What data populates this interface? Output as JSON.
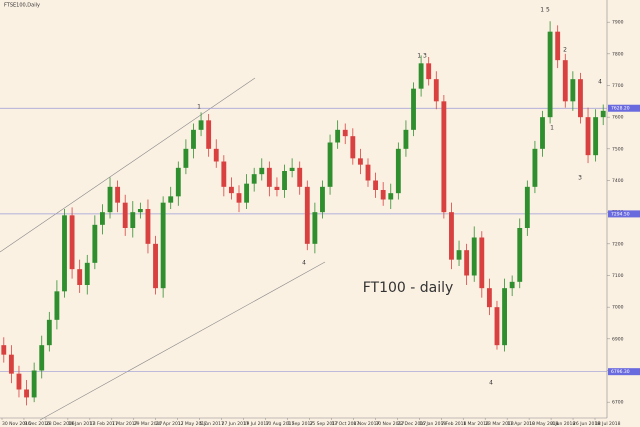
{
  "chart_data": {
    "type": "candlestick",
    "header": "FTSE100,Daily",
    "title": "FT100 - daily",
    "ylim": [
      6650,
      7970
    ],
    "yticks": [
      6700,
      6800,
      6900,
      7000,
      7100,
      7200,
      7300,
      7400,
      7500,
      7600,
      7700,
      7800,
      7900
    ],
    "levels": [
      {
        "value": 7628.2,
        "label": "7628.20"
      },
      {
        "value": 7294.5,
        "label": "7294.50"
      },
      {
        "value": 6796.3,
        "label": "6796.30"
      }
    ],
    "up_color": "#2f8f2f",
    "down_color": "#d94040",
    "x_labels": [
      "30 Nov 2016",
      "9 Dec 2016",
      "28 Dec 2016",
      "19 Jan 2017",
      "13 Feb 2017",
      "7 Mar 2017",
      "29 Mar 2017",
      "20 Apr 2017",
      "12 May 2017",
      "5 Jun 2017",
      "27 Jun 2017",
      "19 Jul 2017",
      "10 Aug 2017",
      "1 Sep 2017",
      "25 Sep 2017",
      "17 Oct 2017",
      "8 Nov 2017",
      "30 Nov 2017",
      "22 Dec 2017",
      "16 Jan 2018",
      "7 Feb 2018",
      "1 Mar 2018",
      "23 Mar 2018",
      "17 Apr 2018",
      "10 May 2018",
      "4 Jun 2018",
      "26 Jun 2018",
      "18 Jul 2018"
    ],
    "annotations": [
      "1",
      "4",
      "1 3",
      "4",
      "1 5",
      "2",
      "1",
      "3",
      "4"
    ],
    "open": [
      6880,
      6850,
      6790,
      6740,
      6715,
      6800,
      6880,
      6960,
      7050,
      7290,
      7120,
      7070,
      7140,
      7260,
      7300,
      7380,
      7330,
      7250,
      7300,
      7310,
      7200,
      7060,
      7330,
      7350,
      7440,
      7500,
      7560,
      7590,
      7500,
      7460,
      7380,
      7360,
      7330,
      7390,
      7420,
      7440,
      7380,
      7370,
      7430,
      7440,
      7380,
      7200,
      7300,
      7380,
      7520,
      7560,
      7540,
      7470,
      7450,
      7400,
      7370,
      7340,
      7360,
      7500,
      7560,
      7690,
      7770,
      7720,
      7650,
      7300,
      7150,
      7180,
      7100,
      7220,
      7060,
      7000,
      6880,
      7060,
      7080,
      7250,
      7380,
      7500,
      7600,
      7870,
      7780,
      7650,
      7720,
      7600,
      7480,
      7600
    ],
    "high": [
      6905,
      6880,
      6815,
      6770,
      6825,
      6910,
      6985,
      7085,
      7310,
      7315,
      7150,
      7165,
      7290,
      7325,
      7410,
      7400,
      7355,
      7335,
      7330,
      7340,
      7225,
      7350,
      7380,
      7460,
      7530,
      7580,
      7615,
      7610,
      7530,
      7480,
      7410,
      7385,
      7420,
      7440,
      7470,
      7460,
      7410,
      7450,
      7470,
      7460,
      7400,
      7330,
      7400,
      7545,
      7590,
      7580,
      7565,
      7500,
      7470,
      7425,
      7395,
      7390,
      7520,
      7590,
      7710,
      7795,
      7790,
      7745,
      7670,
      7330,
      7210,
      7200,
      7255,
      7240,
      7090,
      7020,
      7090,
      7100,
      7280,
      7400,
      7525,
      7620,
      7903,
      7890,
      7800,
      7745,
      7740,
      7630,
      7625,
      7640
    ],
    "low": [
      6825,
      6760,
      6715,
      6690,
      6700,
      6775,
      6860,
      6930,
      7030,
      7090,
      7045,
      7040,
      7120,
      7230,
      7280,
      7300,
      7225,
      7220,
      7280,
      7170,
      7040,
      7030,
      7310,
      7320,
      7420,
      7470,
      7540,
      7475,
      7440,
      7350,
      7340,
      7300,
      7310,
      7365,
      7400,
      7350,
      7350,
      7345,
      7410,
      7355,
      7180,
      7170,
      7280,
      7355,
      7500,
      7515,
      7450,
      7420,
      7380,
      7345,
      7320,
      7310,
      7340,
      7475,
      7540,
      7665,
      7700,
      7625,
      7280,
      7120,
      7130,
      7070,
      7080,
      7030,
      6975,
      6866,
      6860,
      7035,
      7060,
      7225,
      7360,
      7475,
      7580,
      7755,
      7630,
      7620,
      7580,
      7455,
      7460,
      7575
    ],
    "close": [
      6850,
      6790,
      6740,
      6715,
      6800,
      6880,
      6960,
      7050,
      7290,
      7120,
      7070,
      7140,
      7260,
      7300,
      7380,
      7330,
      7250,
      7300,
      7310,
      7200,
      7060,
      7330,
      7350,
      7440,
      7500,
      7560,
      7590,
      7500,
      7460,
      7380,
      7360,
      7330,
      7390,
      7420,
      7440,
      7380,
      7370,
      7430,
      7440,
      7380,
      7200,
      7300,
      7380,
      7520,
      7560,
      7540,
      7470,
      7450,
      7400,
      7370,
      7340,
      7360,
      7500,
      7560,
      7690,
      7770,
      7720,
      7650,
      7300,
      7150,
      7180,
      7100,
      7220,
      7060,
      7000,
      6880,
      7060,
      7080,
      7250,
      7380,
      7500,
      7600,
      7870,
      7780,
      7650,
      7720,
      7600,
      7480,
      7600,
      7620
    ]
  }
}
